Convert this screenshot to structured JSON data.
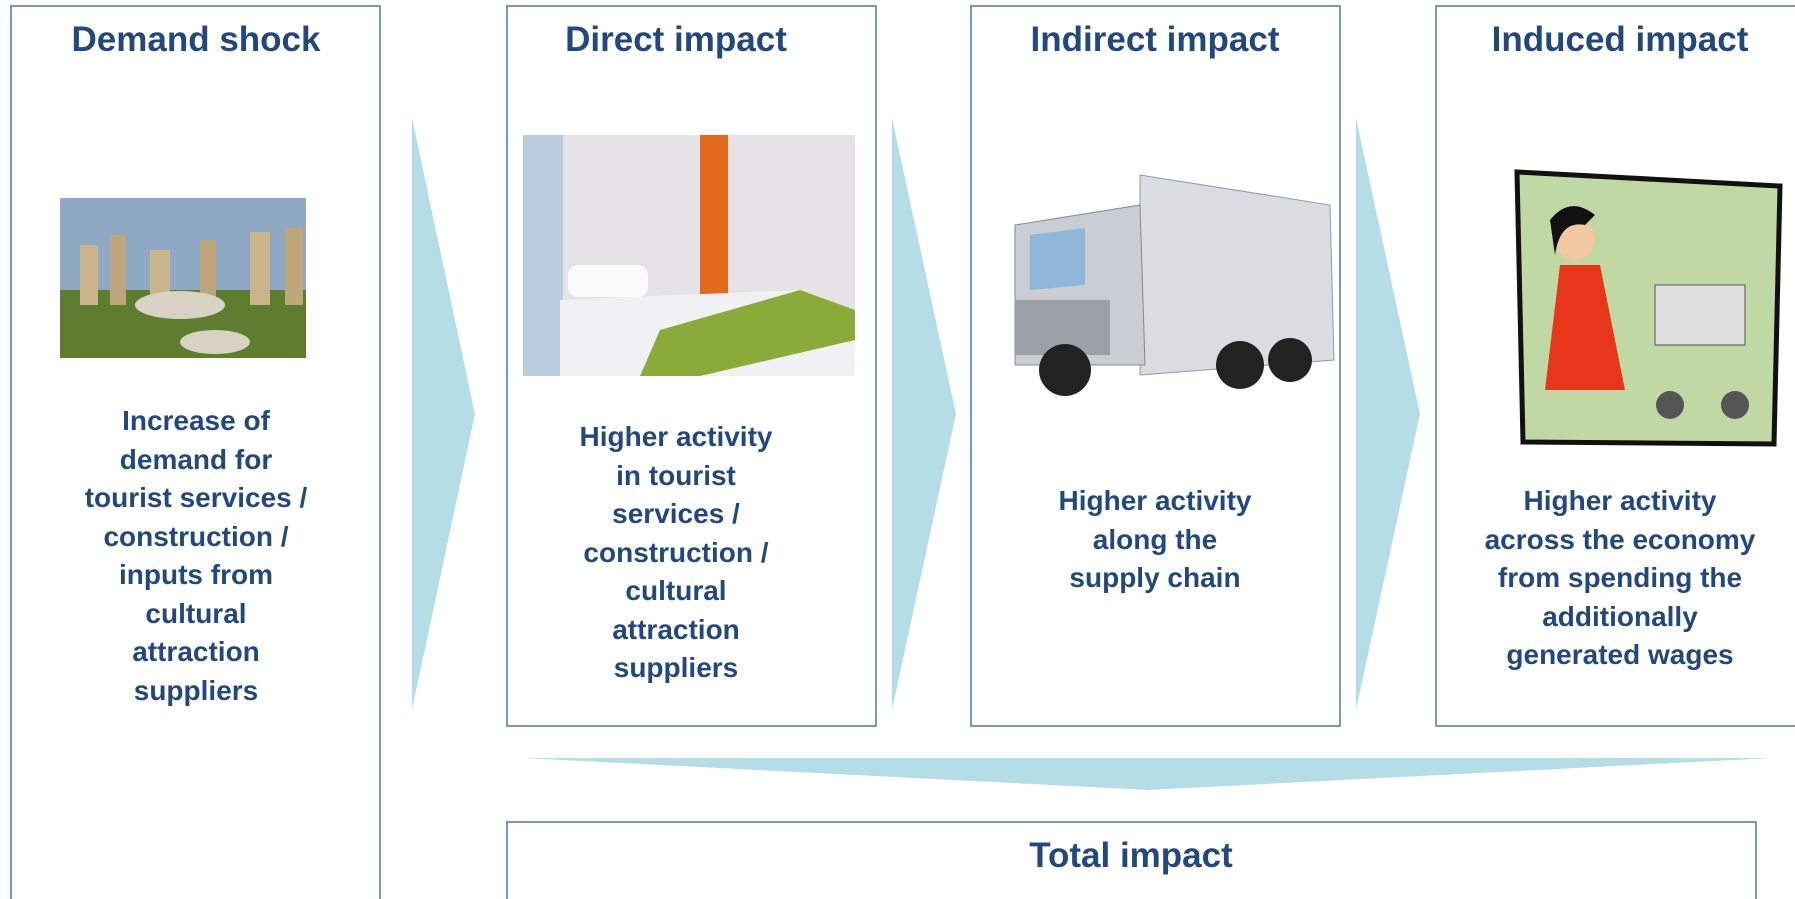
{
  "boxes": [
    {
      "title": "Demand shock",
      "lines": [
        "Increase of",
        "demand for",
        "tourist services /",
        "construction /",
        "inputs from",
        "cultural",
        "attraction",
        "suppliers"
      ]
    },
    {
      "title": "Direct impact",
      "lines": [
        "Higher activity",
        "in tourist",
        "services /",
        "construction /",
        "cultural",
        "attraction",
        "suppliers"
      ]
    },
    {
      "title": "Indirect impact",
      "lines": [
        "Higher activity",
        "along the",
        "supply chain"
      ]
    },
    {
      "title": "Induced impact",
      "lines": [
        "Higher activity",
        "across the economy",
        "from spending the",
        "additionally",
        "generated wages"
      ]
    }
  ],
  "total": {
    "title": "Total impact"
  }
}
